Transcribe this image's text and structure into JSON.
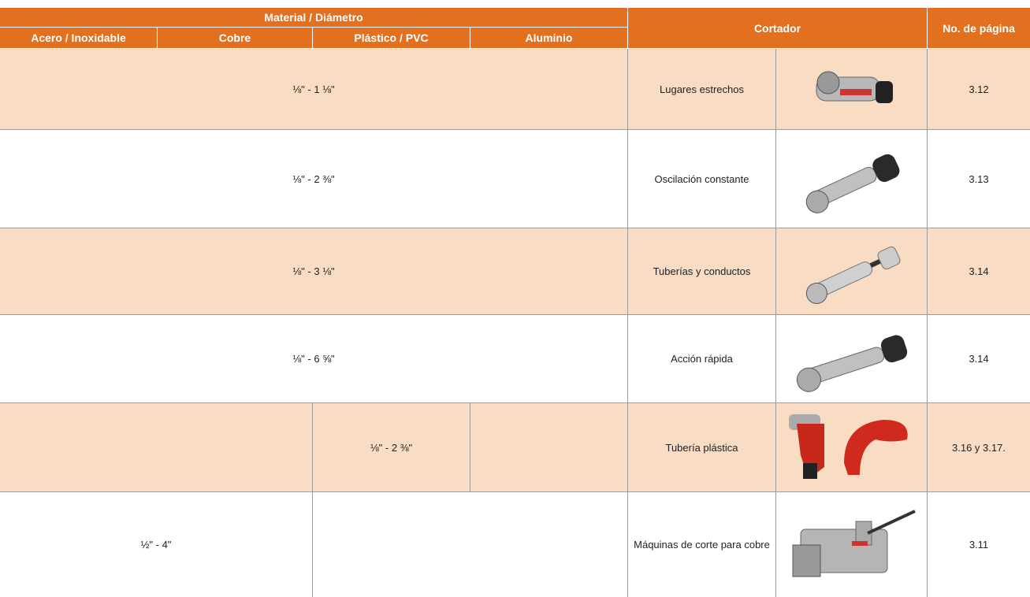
{
  "header": {
    "group": "Material / Diámetro",
    "columns": [
      "Acero / Inoxidable",
      "Cobre",
      "Plástico / PVC",
      "Aluminio"
    ],
    "cutter": "Cortador",
    "page": "No. de página"
  },
  "rows": [
    {
      "range": "⅛\" - 1 ⅛\"",
      "cutter": "Lugares estrechos",
      "page": "3.12"
    },
    {
      "range": "⅛\" - 2 ⅜\"",
      "cutter": "Oscilación constante",
      "page": "3.13"
    },
    {
      "range": "⅛\" - 3 ⅛\"",
      "cutter": "Tuberías y conductos",
      "page": "3.14"
    },
    {
      "range": "⅛\" - 6 ⅝\"",
      "cutter": "Acción rápida",
      "page": "3.14"
    },
    {
      "range": "⅛\" - 2 ⅜\"",
      "cutter": "Tubería plástica",
      "page": "3.16 y 3.17."
    },
    {
      "range": "½\" - 4\"",
      "cutter": "Máquinas de corte para cobre",
      "page": "3.11"
    }
  ]
}
